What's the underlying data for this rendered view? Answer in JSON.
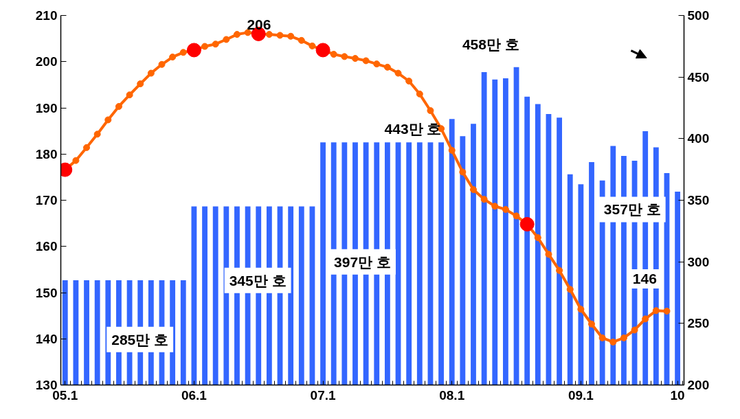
{
  "chart_data": {
    "type": "bar",
    "categories": [
      "05.1",
      null,
      null,
      null,
      null,
      null,
      null,
      null,
      null,
      null,
      null,
      null,
      "06.1",
      null,
      null,
      null,
      null,
      null,
      null,
      null,
      null,
      null,
      null,
      null,
      "07.1",
      null,
      null,
      null,
      null,
      null,
      null,
      null,
      null,
      null,
      null,
      null,
      "08.1",
      null,
      null,
      null,
      null,
      null,
      null,
      null,
      null,
      null,
      null,
      null,
      "09.1",
      null,
      null,
      null,
      null,
      null,
      null,
      null,
      null,
      "10"
    ],
    "ylim": [
      130,
      210
    ],
    "yticks": [
      130,
      140,
      150,
      160,
      170,
      180,
      190,
      200,
      210
    ],
    "y2lim": [
      200,
      500
    ],
    "y2ticks": [
      200,
      250,
      300,
      350,
      400,
      450,
      500
    ],
    "series": [
      {
        "axis": "y2",
        "color": "#3366ff",
        "values": [
          285,
          285,
          285,
          285,
          285,
          285,
          285,
          285,
          285,
          285,
          285,
          285,
          345,
          345,
          345,
          345,
          345,
          345,
          345,
          345,
          345,
          345,
          345,
          345,
          397,
          397,
          397,
          397,
          397,
          397,
          397,
          397,
          397,
          397,
          397,
          397,
          416,
          402,
          412,
          454,
          448,
          449,
          458,
          434,
          428,
          420,
          417,
          371,
          363,
          381,
          366,
          394,
          386,
          382,
          406,
          393,
          372,
          357
        ]
      },
      {
        "type": "line",
        "color": "#ff6600",
        "marker": "circle",
        "values": [
          176.6,
          178.6,
          181.4,
          184.3,
          187.4,
          190.3,
          192.8,
          195.2,
          197.5,
          199.4,
          201.0,
          202.0,
          202.5,
          203.3,
          203.8,
          204.8,
          205.9,
          206.3,
          206,
          205.9,
          205.7,
          205.5,
          204.6,
          203.4,
          202.5,
          201.6,
          201.1,
          200.7,
          200.2,
          199.5,
          198.8,
          197.5,
          195.8,
          193.0,
          189.4,
          185.5,
          180.8,
          176.1,
          172.3,
          170.2,
          168.7,
          168.0,
          166.6,
          164.8,
          161.9,
          158.3,
          154.8,
          150.7,
          146.4,
          143.2,
          140.2,
          139.3,
          140.2,
          141.9,
          144.3,
          146.1,
          146,
          null
        ]
      },
      {
        "type": "scatter",
        "color": "#ff0000",
        "marker": "circle",
        "values": [
          176.6,
          null,
          null,
          null,
          null,
          null,
          null,
          null,
          null,
          null,
          null,
          null,
          202.5,
          null,
          null,
          null,
          null,
          null,
          206,
          null,
          null,
          null,
          null,
          null,
          202.5,
          null,
          null,
          null,
          null,
          null,
          null,
          null,
          null,
          null,
          null,
          null,
          null,
          null,
          null,
          null,
          null,
          null,
          null,
          164.8,
          null,
          null,
          null,
          null,
          null,
          null,
          null,
          null,
          null,
          null,
          null,
          null,
          null,
          null
        ]
      }
    ],
    "annotations": [
      "206",
      "285만 호",
      "345만 호",
      "397만 호",
      "443만 호",
      "458만 호",
      "357만 호",
      "146"
    ],
    "grid": false
  }
}
